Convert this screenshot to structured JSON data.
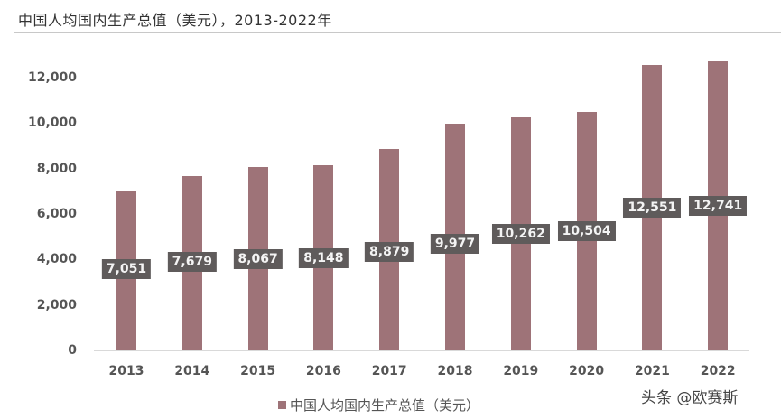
{
  "header": {
    "title": "中国人均国内生产总值（美元），2013-2022年"
  },
  "chart_data": {
    "type": "bar",
    "title": "中国人均国内生产总值（美元），2013-2022年",
    "xlabel": "",
    "ylabel": "",
    "categories": [
      "2013",
      "2014",
      "2015",
      "2016",
      "2017",
      "2018",
      "2019",
      "2020",
      "2021",
      "2022"
    ],
    "series": [
      {
        "name": "中国人均国内生产总值（美元）",
        "color": "#9e7378",
        "values": [
          7051,
          7679,
          8067,
          8148,
          8879,
          9977,
          10262,
          10504,
          12551,
          12741
        ],
        "labels": [
          "7,051",
          "7,679",
          "8,067",
          "8,148",
          "8,879",
          "9,977",
          "10,262",
          "10,504",
          "12,551",
          "12,741"
        ]
      }
    ],
    "ylim": [
      0,
      12000
    ],
    "yticks": [
      "0",
      "2,000",
      "4,000",
      "6,000",
      "8,000",
      "10,000",
      "12,000"
    ],
    "grid": false,
    "legend_position": "bottom",
    "data_label_style": {
      "background": "#5f5b5b",
      "color": "#f4f4f4"
    }
  },
  "legend": {
    "label": "中国人均国内生产总值（美元）"
  },
  "watermark": {
    "text": "头条 @欧赛斯"
  }
}
